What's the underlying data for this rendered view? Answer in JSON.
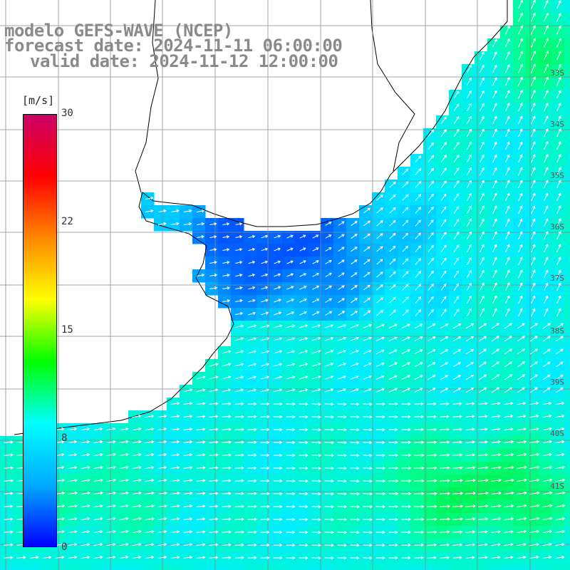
{
  "header": {
    "line1": "modelo GEFS-WAVE (NCEP)",
    "line2": "forecast date: 2024-11-11 06:00:00",
    "line3": "valid date: 2024-11-12 12:00:00"
  },
  "colorbar": {
    "unit": "[m/s]",
    "ticks": [
      {
        "value": 30,
        "label": "30"
      },
      {
        "value": 22,
        "label": "22"
      },
      {
        "value": 15,
        "label": "15"
      },
      {
        "value": 8,
        "label": "8"
      },
      {
        "value": 0,
        "label": "0"
      }
    ],
    "colors": [
      "#0000ff",
      "#00aaff",
      "#00ffff",
      "#00ff00",
      "#ffff00",
      "#ff8800",
      "#ff0000",
      "#cc0066"
    ]
  },
  "latitude_labels": [
    "33S",
    "34S",
    "35S",
    "36S",
    "37S",
    "38S",
    "39S",
    "40S",
    "41S"
  ],
  "colors": {
    "land": "#ffffff",
    "grid": "#888888",
    "coast": "#000000",
    "arrow": "#ffffff"
  }
}
